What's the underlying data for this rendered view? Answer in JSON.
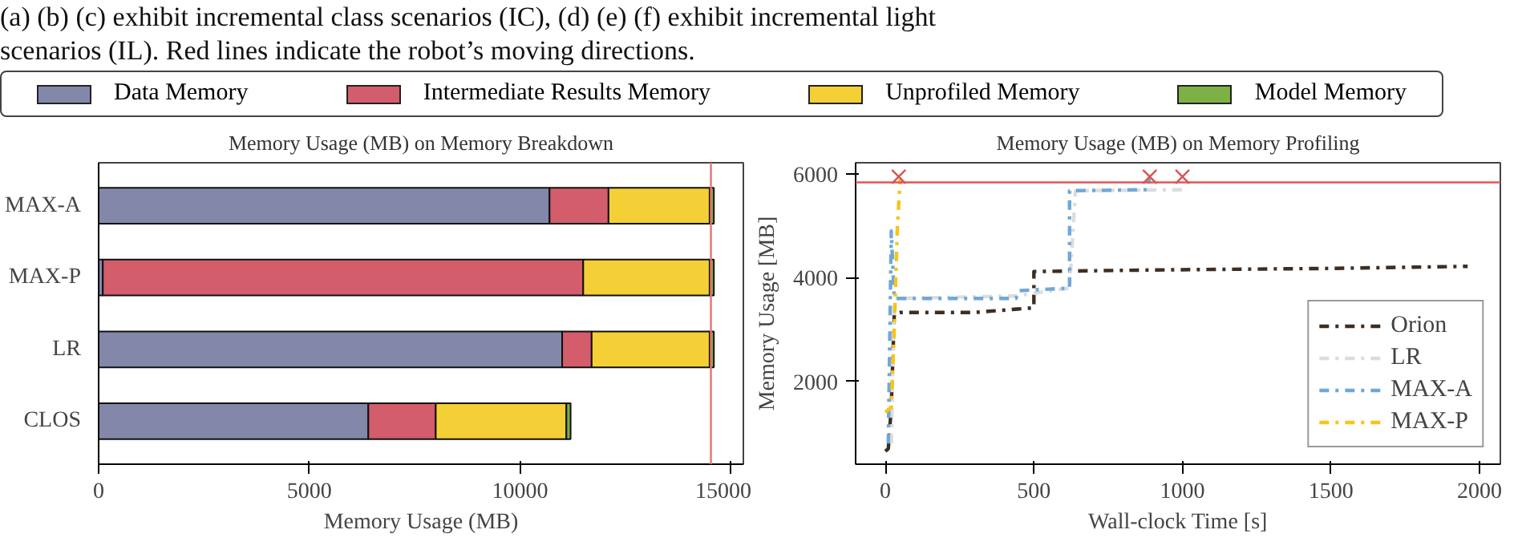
{
  "chart_data": [
    {
      "type": "bar",
      "orientation": "horizontal",
      "stacked": true,
      "title": "Memory Usage (MB) on Memory Breakdown",
      "xlabel": "Memory Usage (MB)",
      "annotations": [
        "(a) (b) (c) exhibit incremental class scenarios (IC), (d) (e) (f) exhibit incremental light",
        "scenarios (IL). Red lines indicate the robot’s moving directions."
      ],
      "categories": [
        "MAX-A",
        "MAX-P",
        "LR",
        "CLOS"
      ],
      "series": [
        {
          "name": "Data Memory",
          "color": "#8387aa",
          "values": [
            10700,
            100,
            11000,
            6400
          ]
        },
        {
          "name": "Intermediate Results Memory",
          "color": "#d35d6b",
          "values": [
            1400,
            11400,
            700,
            1600
          ]
        },
        {
          "name": "Unprofiled Memory",
          "color": "#f4cf36",
          "values": [
            2400,
            3000,
            2800,
            3100
          ]
        },
        {
          "name": "Model Memory",
          "color": "#7fb045",
          "values": [
            100,
            100,
            100,
            100
          ]
        }
      ],
      "xlim": [
        0,
        15300
      ],
      "xticks": [
        0,
        5000,
        10000,
        15000
      ],
      "ref_lines": [
        {
          "axis": "x",
          "value": 14530,
          "color": "#e57373"
        }
      ],
      "legend": "top",
      "grid": false
    },
    {
      "type": "line",
      "title": "Memory Usage (MB) on Memory Profiling",
      "xlabel": "Wall-clock Time [s]",
      "ylabel": "Memory Usage [MB]",
      "line_style": "dashdot",
      "series": [
        {
          "name": "Orion",
          "color": "#3d2e22",
          "x": [
            0,
            10,
            20,
            30,
            50,
            300,
            500,
            500,
            900,
            1500,
            1960
          ],
          "values": [
            650,
            700,
            1500,
            3300,
            3330,
            3330,
            3420,
            4120,
            4150,
            4180,
            4220
          ]
        },
        {
          "name": "LR",
          "color": "#dcdcdc",
          "x": [
            20,
            30,
            40,
            440,
            620,
            640,
            1000
          ],
          "values": [
            800,
            3500,
            3600,
            3650,
            3800,
            5680,
            5700
          ]
        },
        {
          "name": "MAX-A",
          "color": "#6fa8d8",
          "x": [
            10,
            20,
            30,
            440,
            450,
            620,
            620,
            880,
            890
          ],
          "values": [
            800,
            4900,
            3600,
            3600,
            3750,
            3800,
            5680,
            5700,
            5940
          ]
        },
        {
          "name": "MAX-P",
          "color": "#f5c518",
          "x": [
            0,
            20,
            30,
            40,
            50
          ],
          "values": [
            1400,
            1500,
            3000,
            4900,
            5900
          ]
        },
        {
          "type": "scatter",
          "marker": "cross",
          "color": "#d9534f",
          "x": [
            45,
            890,
            1000
          ],
          "values": [
            5950,
            5950,
            5950
          ]
        }
      ],
      "xlim": [
        -100,
        2070
      ],
      "xticks": [
        0,
        500,
        1000,
        1500,
        2000
      ],
      "ylim": [
        400,
        6220
      ],
      "yticks": [
        2000,
        4000,
        6000
      ],
      "ref_lines": [
        {
          "axis": "y",
          "value": 5840,
          "color": "#e05555"
        }
      ],
      "legend": "bottom right",
      "grid": false
    }
  ]
}
